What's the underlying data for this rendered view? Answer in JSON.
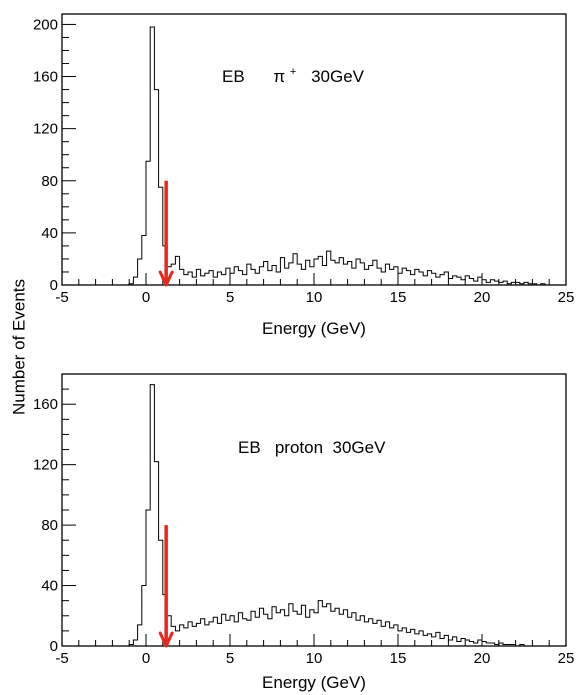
{
  "figure": {
    "shared_ylabel": "Number of Events"
  },
  "chart_data": [
    {
      "type": "histogram",
      "xlabel": "Energy  (GeV)",
      "ylabel": "Number of Events",
      "xlim": [
        -5,
        25
      ],
      "ylim": [
        0,
        208
      ],
      "x_ticks": [
        -5,
        0,
        5,
        10,
        15,
        20,
        25
      ],
      "y_ticks": [
        0,
        40,
        80,
        120,
        160,
        200
      ],
      "annotation": {
        "text": "EB",
        "particle": "π",
        "charge": "+",
        "energy": "30GeV"
      },
      "cut_arrow": {
        "x": 1.2,
        "y_from": 80,
        "y_to": 0,
        "color": "#e8281e"
      },
      "bin_width": 0.25,
      "series": [
        {
          "x": [
            -1.0,
            -0.75,
            -0.5,
            -0.25,
            0.0,
            0.25,
            0.5,
            0.75,
            1.0,
            1.25,
            1.5,
            1.75,
            2.0,
            2.25,
            2.5,
            2.75,
            3.0,
            3.25,
            3.5,
            3.75,
            4.0,
            4.25,
            4.5,
            4.75,
            5.0,
            5.25,
            5.5,
            5.75,
            6.0,
            6.25,
            6.5,
            6.75,
            7.0,
            7.25,
            7.5,
            7.75,
            8.0,
            8.25,
            8.5,
            8.75,
            9.0,
            9.25,
            9.5,
            9.75,
            10.0,
            10.25,
            10.5,
            10.75,
            11.0,
            11.25,
            11.5,
            11.75,
            12.0,
            12.25,
            12.5,
            12.75,
            13.0,
            13.25,
            13.5,
            13.75,
            14.0,
            14.25,
            14.5,
            14.75,
            15.0,
            15.25,
            15.5,
            15.75,
            16.0,
            16.25,
            16.5,
            16.75,
            17.0,
            17.25,
            17.5,
            17.75,
            18.0,
            18.25,
            18.5,
            18.75,
            19.0,
            19.25,
            19.5,
            19.75,
            20.0,
            20.25,
            20.5,
            20.75,
            21.0,
            21.25,
            21.5,
            21.75,
            22.0,
            22.25,
            22.5,
            22.75,
            23.0,
            23.25,
            23.5,
            23.75
          ],
          "values": [
            1,
            6,
            20,
            38,
            95,
            198,
            150,
            75,
            30,
            14,
            16,
            22,
            12,
            8,
            10,
            6,
            12,
            7,
            9,
            11,
            6,
            10,
            8,
            13,
            9,
            14,
            11,
            8,
            16,
            12,
            9,
            14,
            18,
            11,
            15,
            10,
            21,
            13,
            17,
            24,
            16,
            12,
            19,
            14,
            20,
            22,
            15,
            26,
            19,
            17,
            21,
            16,
            18,
            13,
            20,
            17,
            12,
            15,
            19,
            13,
            10,
            16,
            12,
            14,
            9,
            13,
            11,
            8,
            12,
            10,
            7,
            11,
            9,
            6,
            8,
            10,
            5,
            7,
            6,
            4,
            7,
            5,
            3,
            6,
            4,
            2,
            4,
            3,
            2,
            3,
            1,
            2,
            2,
            1,
            2,
            1,
            1,
            0,
            1,
            0
          ]
        }
      ]
    },
    {
      "type": "histogram",
      "xlabel": "Energy  (GeV)",
      "ylabel": "Number of Events",
      "xlim": [
        -5,
        25
      ],
      "ylim": [
        0,
        180
      ],
      "x_ticks": [
        -5,
        0,
        5,
        10,
        15,
        20,
        25
      ],
      "y_ticks": [
        0,
        40,
        80,
        120,
        160
      ],
      "annotation": {
        "text": "EB   proton  30GeV"
      },
      "cut_arrow": {
        "x": 1.2,
        "y_from": 80,
        "y_to": 0,
        "color": "#e8281e"
      },
      "bin_width": 0.25,
      "series": [
        {
          "x": [
            -1.0,
            -0.75,
            -0.5,
            -0.25,
            0.0,
            0.25,
            0.5,
            0.75,
            1.0,
            1.25,
            1.5,
            1.75,
            2.0,
            2.25,
            2.5,
            2.75,
            3.0,
            3.25,
            3.5,
            3.75,
            4.0,
            4.25,
            4.5,
            4.75,
            5.0,
            5.25,
            5.5,
            5.75,
            6.0,
            6.25,
            6.5,
            6.75,
            7.0,
            7.25,
            7.5,
            7.75,
            8.0,
            8.25,
            8.5,
            8.75,
            9.0,
            9.25,
            9.5,
            9.75,
            10.0,
            10.25,
            10.5,
            10.75,
            11.0,
            11.25,
            11.5,
            11.75,
            12.0,
            12.25,
            12.5,
            12.75,
            13.0,
            13.25,
            13.5,
            13.75,
            14.0,
            14.25,
            14.5,
            14.75,
            15.0,
            15.25,
            15.5,
            15.75,
            16.0,
            16.25,
            16.5,
            16.75,
            17.0,
            17.25,
            17.5,
            17.75,
            18.0,
            18.25,
            18.5,
            18.75,
            19.0,
            19.25,
            19.5,
            19.75,
            20.0,
            20.25,
            20.5,
            20.75,
            21.0,
            21.25,
            21.5,
            21.75,
            22.0,
            22.25,
            22.5,
            22.75
          ],
          "values": [
            1,
            4,
            14,
            40,
            90,
            173,
            122,
            70,
            34,
            20,
            13,
            10,
            14,
            12,
            16,
            13,
            15,
            18,
            14,
            16,
            19,
            15,
            21,
            17,
            20,
            16,
            22,
            18,
            17,
            23,
            19,
            25,
            21,
            18,
            26,
            22,
            24,
            20,
            28,
            23,
            21,
            27,
            19,
            24,
            22,
            30,
            26,
            28,
            23,
            25,
            21,
            24,
            19,
            22,
            17,
            20,
            16,
            18,
            15,
            17,
            13,
            16,
            12,
            14,
            10,
            12,
            9,
            11,
            8,
            10,
            7,
            8,
            6,
            9,
            5,
            7,
            4,
            6,
            3,
            5,
            4,
            3,
            2,
            4,
            3,
            2,
            2,
            1,
            2,
            1,
            1,
            1,
            0,
            1,
            0,
            0
          ]
        }
      ]
    }
  ]
}
